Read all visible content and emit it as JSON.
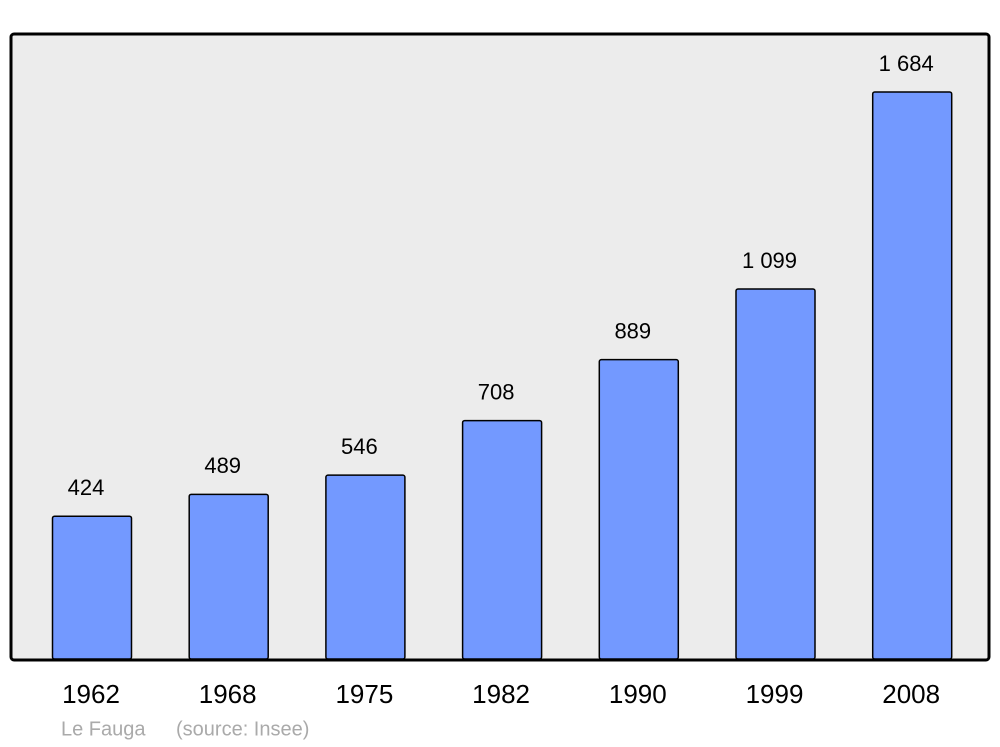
{
  "chart_data": {
    "type": "bar",
    "categories": [
      "1962",
      "1968",
      "1975",
      "1982",
      "1990",
      "1999",
      "2008"
    ],
    "values": [
      424,
      489,
      546,
      708,
      889,
      1099,
      1684
    ],
    "value_labels": [
      "424",
      "489",
      "546",
      "708",
      "889",
      "1 099",
      "1 684"
    ],
    "color": "#7399ff",
    "place": "Le Fauga",
    "source": "(source: Insee)"
  }
}
